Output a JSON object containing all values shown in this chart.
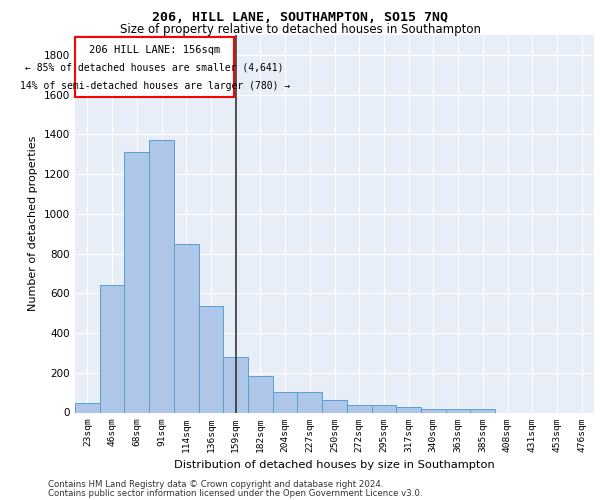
{
  "title1": "206, HILL LANE, SOUTHAMPTON, SO15 7NQ",
  "title2": "Size of property relative to detached houses in Southampton",
  "xlabel": "Distribution of detached houses by size in Southampton",
  "ylabel": "Number of detached properties",
  "categories": [
    "23sqm",
    "46sqm",
    "68sqm",
    "91sqm",
    "114sqm",
    "136sqm",
    "159sqm",
    "182sqm",
    "204sqm",
    "227sqm",
    "250sqm",
    "272sqm",
    "295sqm",
    "317sqm",
    "340sqm",
    "363sqm",
    "385sqm",
    "408sqm",
    "431sqm",
    "453sqm",
    "476sqm"
  ],
  "values": [
    50,
    640,
    1310,
    1370,
    848,
    535,
    277,
    185,
    105,
    105,
    65,
    40,
    40,
    30,
    20,
    20,
    20,
    0,
    0,
    0,
    0
  ],
  "bar_color": "#aec6e8",
  "bar_edge_color": "#5a9fd4",
  "vline_index": 6,
  "annotation_text1": "206 HILL LANE: 156sqm",
  "annotation_text2": "← 85% of detached houses are smaller (4,641)",
  "annotation_text3": "14% of semi-detached houses are larger (780) →",
  "ylim": [
    0,
    1900
  ],
  "yticks": [
    0,
    200,
    400,
    600,
    800,
    1000,
    1200,
    1400,
    1600,
    1800
  ],
  "bg_color": "#e8eef8",
  "grid_color": "white",
  "footer1": "Contains HM Land Registry data © Crown copyright and database right 2024.",
  "footer2": "Contains public sector information licensed under the Open Government Licence v3.0."
}
